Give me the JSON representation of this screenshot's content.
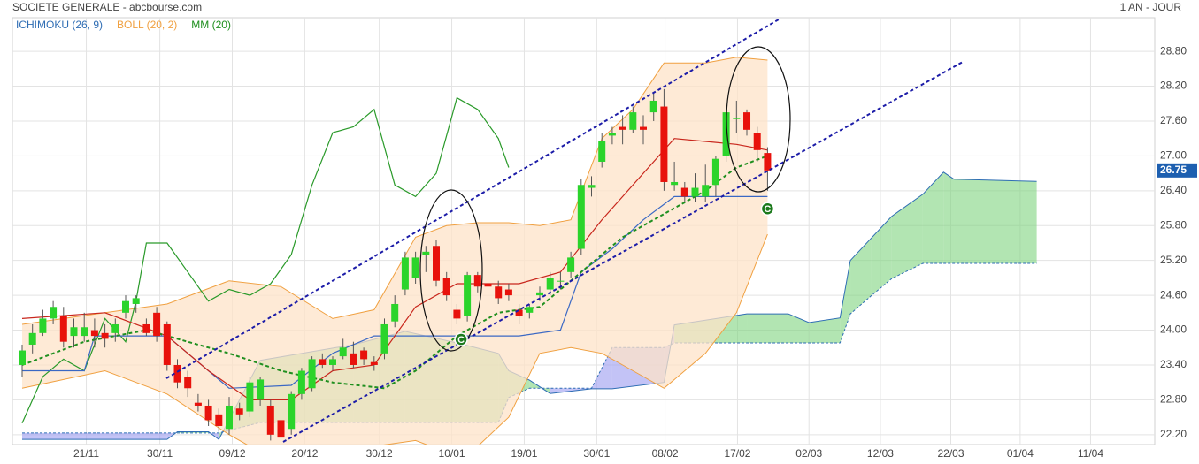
{
  "chart_data": {
    "type": "candlestick",
    "title": "SOCIETE GENERALE - abcbourse.com",
    "period": "1 AN - JOUR",
    "colors": {
      "up": "#2bd42b",
      "down": "#e8120c"
    },
    "open": [
      23.4,
      23.75,
      23.95,
      24.2,
      24.25,
      23.9,
      23.9,
      24.0,
      23.95,
      23.95,
      24.3,
      24.45,
      24.1,
      24.3,
      24.1,
      23.4,
      23.2,
      22.75,
      22.7,
      22.55,
      22.3,
      22.65,
      22.6,
      22.8,
      22.7,
      22.45,
      22.3,
      22.9,
      23.0,
      23.5,
      23.4,
      23.55,
      23.6,
      23.65,
      23.45,
      23.6,
      24.15,
      24.7,
      24.9,
      25.3,
      25.45,
      24.9,
      24.35,
      24.25,
      24.95,
      24.8,
      24.75,
      24.7,
      24.35,
      24.3,
      24.6,
      24.7,
      24.85,
      25.0,
      25.4,
      26.45,
      26.9,
      27.35,
      27.5,
      27.45,
      27.5,
      27.75,
      27.85,
      26.5,
      26.45,
      26.3,
      26.3,
      26.5,
      27.0,
      27.65,
      27.75,
      27.4,
      27.05
    ],
    "high": [
      23.75,
      24.1,
      24.35,
      24.5,
      24.4,
      24.2,
      24.3,
      24.2,
      24.1,
      24.2,
      24.6,
      24.6,
      24.2,
      24.4,
      24.15,
      23.5,
      23.3,
      22.9,
      22.8,
      22.65,
      22.85,
      22.75,
      23.2,
      23.2,
      22.8,
      22.55,
      22.95,
      23.35,
      23.55,
      23.6,
      23.55,
      23.85,
      23.8,
      23.7,
      23.55,
      24.2,
      24.6,
      25.35,
      25.35,
      25.45,
      25.55,
      25.0,
      24.45,
      25.0,
      25.0,
      24.9,
      24.85,
      24.8,
      24.45,
      24.45,
      24.75,
      25.0,
      25.0,
      25.35,
      26.6,
      26.65,
      27.4,
      27.5,
      27.7,
      27.85,
      27.7,
      28.1,
      28.15,
      26.9,
      26.55,
      26.7,
      26.85,
      27.0,
      27.85,
      27.95,
      27.8,
      27.5,
      27.15
    ],
    "low": [
      23.2,
      23.6,
      23.9,
      24.1,
      23.7,
      23.7,
      23.8,
      23.7,
      23.7,
      23.8,
      24.2,
      24.3,
      23.9,
      23.8,
      23.3,
      23.0,
      22.85,
      22.6,
      22.35,
      22.25,
      22.2,
      22.45,
      22.5,
      22.7,
      22.1,
      22.1,
      22.2,
      22.8,
      22.95,
      23.35,
      23.3,
      23.5,
      23.35,
      23.4,
      23.3,
      23.5,
      24.05,
      24.6,
      24.8,
      25.0,
      24.75,
      24.5,
      24.1,
      24.15,
      24.65,
      24.65,
      24.45,
      24.5,
      24.1,
      24.2,
      24.5,
      24.6,
      24.7,
      24.9,
      25.3,
      26.3,
      26.8,
      27.2,
      27.2,
      27.4,
      27.2,
      27.6,
      26.4,
      26.4,
      26.2,
      26.2,
      26.2,
      26.3,
      26.9,
      27.4,
      27.35,
      26.9,
      26.4
    ],
    "close": [
      23.65,
      23.95,
      24.2,
      24.4,
      23.8,
      24.05,
      24.05,
      23.9,
      23.85,
      24.1,
      24.5,
      24.55,
      23.95,
      23.9,
      23.4,
      23.1,
      23.0,
      22.7,
      22.45,
      22.35,
      22.7,
      22.55,
      23.1,
      23.15,
      22.2,
      22.15,
      22.9,
      23.3,
      23.5,
      23.4,
      23.5,
      23.7,
      23.4,
      23.5,
      23.4,
      24.1,
      24.45,
      25.25,
      25.25,
      25.35,
      24.85,
      24.6,
      24.2,
      24.95,
      24.75,
      24.75,
      24.55,
      24.6,
      24.25,
      24.4,
      24.65,
      24.9,
      24.85,
      25.25,
      26.5,
      26.5,
      27.25,
      27.4,
      27.45,
      27.75,
      27.45,
      27.95,
      26.55,
      26.55,
      26.3,
      26.45,
      26.5,
      26.95,
      27.75,
      27.65,
      27.45,
      27.1,
      26.75
    ],
    "last_price": 26.75,
    "xlim": [
      -0.94,
      109.4
    ],
    "ylim": [
      22.03,
      29.38
    ],
    "xticks": [
      {
        "value": 6.2,
        "label": "21/11"
      },
      {
        "value": 13.3,
        "label": "30/11"
      },
      {
        "value": 20.3,
        "label": "09/12"
      },
      {
        "value": 27.3,
        "label": "20/12"
      },
      {
        "value": 34.5,
        "label": "30/12"
      },
      {
        "value": 41.5,
        "label": "10/01"
      },
      {
        "value": 48.5,
        "label": "19/01"
      },
      {
        "value": 55.5,
        "label": "30/01"
      },
      {
        "value": 62.1,
        "label": "08/02"
      },
      {
        "value": 69.1,
        "label": "17/02"
      },
      {
        "value": 76,
        "label": "02/03"
      },
      {
        "value": 82.9,
        "label": "12/03"
      },
      {
        "value": 89.7,
        "label": "22/03"
      },
      {
        "value": 96.4,
        "label": "01/04"
      },
      {
        "value": 103.2,
        "label": "11/04"
      }
    ],
    "yticks": [
      {
        "value": 22.2,
        "label": "22.20"
      },
      {
        "value": 22.8,
        "label": "22.80"
      },
      {
        "value": 23.4,
        "label": "23.40"
      },
      {
        "value": 24.0,
        "label": "24.00"
      },
      {
        "value": 24.6,
        "label": "24.60"
      },
      {
        "value": 25.2,
        "label": "25.20"
      },
      {
        "value": 25.8,
        "label": "25.80"
      },
      {
        "value": 26.4,
        "label": "26.40"
      },
      {
        "value": 27.0,
        "label": "27.00"
      },
      {
        "value": 27.6,
        "label": "27.60"
      },
      {
        "value": 28.2,
        "label": "28.20"
      },
      {
        "value": 28.8,
        "label": "28.80"
      }
    ],
    "grid": true,
    "series": [
      {
        "name": "ICHIMOKU (26, 9)",
        "color": "#2e6db4",
        "tenkan": {
          "color": "#c8261c",
          "x": [
            0,
            8,
            14,
            18,
            22,
            26,
            30,
            34,
            38,
            42,
            48,
            52,
            56,
            60,
            63,
            66,
            69,
            72
          ],
          "values": [
            24.2,
            24.3,
            23.9,
            23.3,
            22.8,
            22.8,
            23.3,
            23.4,
            24.4,
            24.8,
            24.8,
            25.0,
            25.9,
            26.7,
            27.3,
            27.25,
            27.2,
            27.1
          ]
        },
        "kijun": {
          "color": "#3a68c4",
          "x": [
            0,
            6,
            7,
            14,
            16,
            20,
            26,
            30,
            34,
            40,
            48,
            52,
            54,
            57,
            60,
            63,
            72
          ],
          "values": [
            23.3,
            23.3,
            23.9,
            23.9,
            23.6,
            23.0,
            23.05,
            23.6,
            23.9,
            23.9,
            23.9,
            24.0,
            25.0,
            25.4,
            25.9,
            26.3,
            26.3
          ]
        },
        "chikou": {
          "color": "#2a9a2a",
          "x": [
            0,
            2,
            4,
            6,
            8,
            10,
            11,
            12,
            14,
            16,
            18,
            20,
            22,
            24,
            26,
            28,
            30,
            32,
            34,
            36,
            38,
            40,
            42,
            44,
            46,
            47
          ],
          "values": [
            22.4,
            23.2,
            23.5,
            23.3,
            24.2,
            23.8,
            24.5,
            25.5,
            25.5,
            25.0,
            24.5,
            24.7,
            24.6,
            24.8,
            25.3,
            26.5,
            27.4,
            27.5,
            27.8,
            26.5,
            26.3,
            26.7,
            28.0,
            27.8,
            27.3,
            26.8
          ]
        },
        "kumo": {
          "up_color": "#7fd47f",
          "down_color": "#9b9bf0",
          "x": [
            0,
            14,
            15,
            18,
            19,
            23,
            32,
            37,
            42,
            46,
            47,
            49,
            51,
            55,
            57,
            62,
            63,
            70,
            74,
            76,
            79,
            80,
            82,
            84,
            87,
            89,
            90,
            98
          ],
          "span_a": [
            22.12,
            22.12,
            22.25,
            22.25,
            22.12,
            23.48,
            23.75,
            23.98,
            23.78,
            23.6,
            23.3,
            23.14,
            22.91,
            22.99,
            22.99,
            23.1,
            24.09,
            24.28,
            24.28,
            24.13,
            24.21,
            25.2,
            25.58,
            25.96,
            26.34,
            26.72,
            26.6,
            26.56
          ],
          "span_b": [
            22.23,
            22.23,
            22.23,
            22.23,
            22.23,
            22.41,
            22.41,
            22.41,
            22.41,
            22.41,
            22.84,
            23.0,
            23.0,
            23.0,
            23.7,
            23.7,
            23.78,
            23.78,
            23.78,
            23.78,
            23.78,
            24.28,
            24.59,
            24.89,
            25.15,
            25.15,
            25.15,
            25.15
          ]
        }
      },
      {
        "name": "BOLL (20, 2)",
        "color": "#f0a040",
        "fill": "#fde3c8",
        "x": [
          0,
          8,
          14,
          20,
          25,
          30,
          34,
          38,
          41,
          44,
          47,
          50,
          53,
          56,
          59,
          62,
          66,
          69,
          72
        ],
        "upper": [
          24.1,
          24.3,
          24.45,
          24.85,
          24.75,
          24.2,
          24.35,
          25.6,
          25.8,
          25.85,
          25.85,
          25.8,
          25.9,
          27.3,
          27.8,
          28.6,
          28.6,
          28.7,
          28.65
        ],
        "lower": [
          23.0,
          23.3,
          22.9,
          22.2,
          21.7,
          21.9,
          22.0,
          22.1,
          21.9,
          22.0,
          22.5,
          23.6,
          23.7,
          23.6,
          23.3,
          23.0,
          23.6,
          24.3,
          25.65
        ]
      },
      {
        "name": "MM (20)",
        "color": "#1f8f1f",
        "x": [
          0,
          6,
          12,
          16,
          20,
          25,
          30,
          35,
          38,
          42,
          46,
          50,
          54,
          58,
          62,
          66,
          69,
          72
        ],
        "values": [
          23.4,
          23.8,
          24.0,
          23.8,
          23.6,
          23.3,
          23.1,
          23.0,
          23.3,
          23.9,
          24.3,
          24.4,
          25.0,
          25.6,
          26.0,
          26.4,
          26.8,
          27.0
        ]
      }
    ],
    "signals": [
      {
        "label": "C",
        "x": 42.4,
        "y": 23.84
      },
      {
        "label": "C",
        "x": 72,
        "y": 26.09
      }
    ]
  }
}
